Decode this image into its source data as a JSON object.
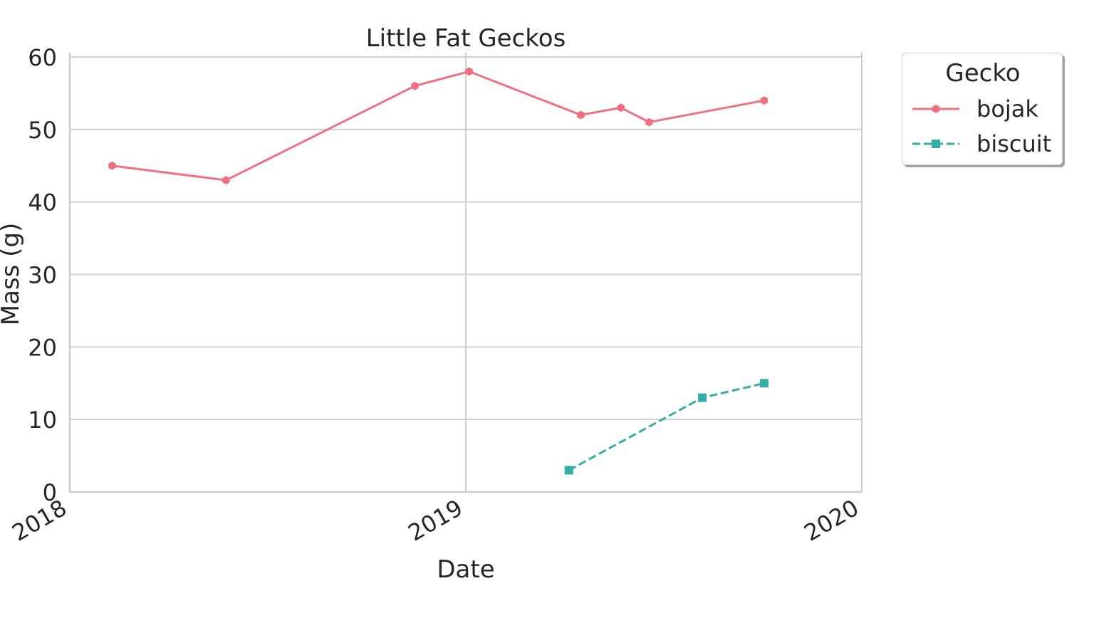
{
  "chart_data": {
    "type": "line",
    "title": "Little Fat Geckos",
    "xlabel": "Date",
    "ylabel": "Mass (g)",
    "xlim": [
      "2018-01-01",
      "2020-01-01"
    ],
    "ylim": [
      0,
      60
    ],
    "x_ticks": [
      "2018",
      "2019",
      "2020"
    ],
    "y_ticks": [
      0,
      10,
      20,
      30,
      40,
      50,
      60
    ],
    "grid": true,
    "legend_title": "Gecko",
    "legend_position": "outside-top-right",
    "series": [
      {
        "name": "bojak",
        "color": "#f07083",
        "line_style": "solid",
        "marker": "hexagon",
        "points": [
          {
            "x": "2018-02-09",
            "y": 45
          },
          {
            "x": "2018-05-25",
            "y": 43
          },
          {
            "x": "2018-11-15",
            "y": 56
          },
          {
            "x": "2019-01-04",
            "y": 58
          },
          {
            "x": "2019-04-17",
            "y": 52
          },
          {
            "x": "2019-05-24",
            "y": 53
          },
          {
            "x": "2019-06-19",
            "y": 51
          },
          {
            "x": "2019-10-03",
            "y": 54
          }
        ]
      },
      {
        "name": "biscuit",
        "color": "#36ada4",
        "line_style": "dashed",
        "marker": "square",
        "points": [
          {
            "x": "2019-04-06",
            "y": 3
          },
          {
            "x": "2019-08-07",
            "y": 13
          },
          {
            "x": "2019-10-03",
            "y": 15
          }
        ]
      }
    ]
  }
}
